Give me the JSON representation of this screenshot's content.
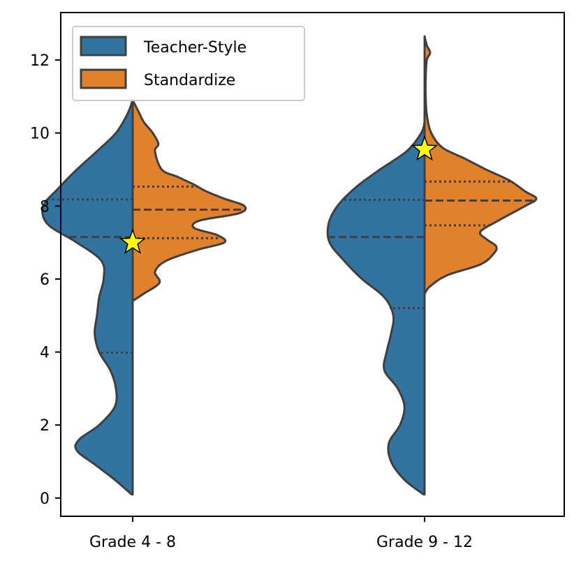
{
  "chart_data": {
    "type": "violin",
    "title": "",
    "xlabel": "",
    "ylabel": "",
    "categories": [
      "Grade 4 - 8",
      "Grade 9 - 12"
    ],
    "ylim": [
      -0.5,
      13.3
    ],
    "yticks": [
      0,
      2,
      4,
      6,
      8,
      10,
      12
    ],
    "grid": false,
    "legend": {
      "placement": "top-left"
    },
    "series": [
      {
        "name": "Teacher-Style",
        "color": "#3274a1",
        "side": "left",
        "groups": [
          {
            "category": "Grade 4 - 8",
            "density": [
              [
                0.1,
                0.01
              ],
              [
                0.5,
                0.16
              ],
              [
                0.9,
                0.33
              ],
              [
                1.3,
                0.5
              ],
              [
                1.6,
                0.48
              ],
              [
                2.0,
                0.3
              ],
              [
                2.5,
                0.16
              ],
              [
                3.0,
                0.15
              ],
              [
                3.5,
                0.2
              ],
              [
                4.0,
                0.3
              ],
              [
                4.5,
                0.34
              ],
              [
                5.0,
                0.32
              ],
              [
                5.5,
                0.3
              ],
              [
                6.0,
                0.26
              ],
              [
                6.5,
                0.28
              ],
              [
                7.0,
                0.5
              ],
              [
                7.5,
                0.76
              ],
              [
                8.0,
                0.8
              ],
              [
                8.5,
                0.66
              ],
              [
                9.0,
                0.5
              ],
              [
                9.5,
                0.32
              ],
              [
                10.0,
                0.15
              ],
              [
                10.5,
                0.05
              ],
              [
                10.9,
                0.0
              ]
            ],
            "quartiles": [
              3.98,
              7.15,
              8.18
            ]
          },
          {
            "category": "Grade 9 - 12",
            "density": [
              [
                0.1,
                0.01
              ],
              [
                0.5,
                0.18
              ],
              [
                1.0,
                0.3
              ],
              [
                1.5,
                0.32
              ],
              [
                2.0,
                0.22
              ],
              [
                2.5,
                0.18
              ],
              [
                3.0,
                0.24
              ],
              [
                3.5,
                0.36
              ],
              [
                4.0,
                0.34
              ],
              [
                4.5,
                0.3
              ],
              [
                5.0,
                0.28
              ],
              [
                5.5,
                0.36
              ],
              [
                6.0,
                0.56
              ],
              [
                6.5,
                0.72
              ],
              [
                7.0,
                0.85
              ],
              [
                7.5,
                0.86
              ],
              [
                8.0,
                0.78
              ],
              [
                8.5,
                0.62
              ],
              [
                9.0,
                0.4
              ],
              [
                9.5,
                0.16
              ],
              [
                10.0,
                0.03
              ],
              [
                10.3,
                0.0
              ]
            ],
            "quartiles": [
              5.2,
              7.15,
              8.17
            ]
          }
        ]
      },
      {
        "name": "Standardize",
        "color": "#e1812c",
        "side": "right",
        "groups": [
          {
            "category": "Grade 4 - 8",
            "density": [
              [
                5.4,
                0.0
              ],
              [
                5.6,
                0.1
              ],
              [
                5.9,
                0.24
              ],
              [
                6.2,
                0.2
              ],
              [
                6.5,
                0.3
              ],
              [
                6.8,
                0.58
              ],
              [
                7.0,
                0.82
              ],
              [
                7.2,
                0.76
              ],
              [
                7.4,
                0.55
              ],
              [
                7.6,
                0.6
              ],
              [
                7.8,
                0.95
              ],
              [
                8.0,
                1.0
              ],
              [
                8.2,
                0.82
              ],
              [
                8.4,
                0.66
              ],
              [
                8.6,
                0.54
              ],
              [
                8.8,
                0.4
              ],
              [
                9.0,
                0.26
              ],
              [
                9.5,
                0.2
              ],
              [
                9.7,
                0.23
              ],
              [
                10.0,
                0.18
              ],
              [
                10.3,
                0.1
              ],
              [
                10.6,
                0.05
              ],
              [
                10.9,
                0.0
              ]
            ],
            "quartiles": [
              7.12,
              7.9,
              8.53
            ]
          },
          {
            "category": "Grade 9 - 12",
            "density": [
              [
                5.6,
                0.0
              ],
              [
                5.8,
                0.05
              ],
              [
                6.1,
                0.2
              ],
              [
                6.4,
                0.5
              ],
              [
                6.7,
                0.62
              ],
              [
                6.9,
                0.64
              ],
              [
                7.1,
                0.55
              ],
              [
                7.3,
                0.5
              ],
              [
                7.6,
                0.66
              ],
              [
                8.0,
                0.9
              ],
              [
                8.2,
                1.0
              ],
              [
                8.4,
                0.9
              ],
              [
                8.7,
                0.76
              ],
              [
                9.0,
                0.55
              ],
              [
                9.3,
                0.36
              ],
              [
                9.6,
                0.16
              ],
              [
                10.0,
                0.06
              ],
              [
                10.5,
                0.02
              ],
              [
                11.0,
                0.01
              ],
              [
                11.5,
                0.01
              ],
              [
                12.0,
                0.02
              ],
              [
                12.2,
                0.05
              ],
              [
                12.4,
                0.02
              ],
              [
                12.65,
                0.0
              ]
            ],
            "quartiles": [
              7.47,
              8.15,
              8.67
            ]
          }
        ]
      }
    ],
    "markers": [
      {
        "category": "Grade 4 - 8",
        "y": 7.0,
        "shape": "star",
        "color": "#ffff00"
      },
      {
        "category": "Grade 9 - 12",
        "y": 9.55,
        "shape": "star",
        "color": "#ffff00"
      }
    ]
  }
}
